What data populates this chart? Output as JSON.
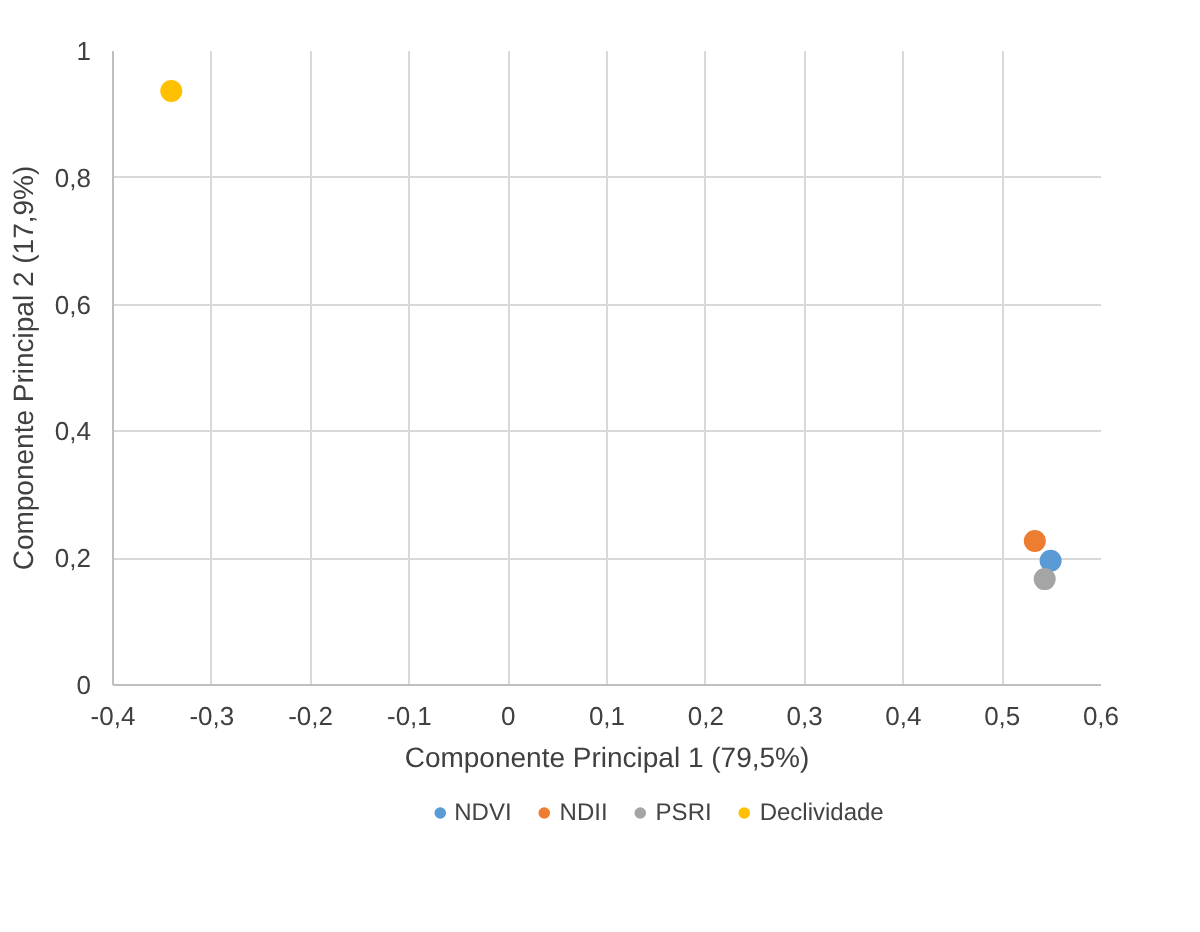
{
  "chart_data": {
    "type": "scatter",
    "xlabel": "Componente Principal 1 (79,5%)",
    "ylabel": "Componente Principal 2 (17,9%)",
    "series": [
      {
        "name": "NDVI",
        "color": "#5b9bd5",
        "x": [
          0.549
        ],
        "values": [
          0.196
        ]
      },
      {
        "name": "NDII",
        "color": "#ed7d31",
        "x": [
          0.533
        ],
        "values": [
          0.227
        ]
      },
      {
        "name": "PSRI",
        "color": "#a5a5a5",
        "x": [
          0.543
        ],
        "values": [
          0.167
        ]
      },
      {
        "name": "Declividade",
        "color": "#ffc000",
        "x": [
          -0.341
        ],
        "values": [
          0.937
        ]
      }
    ],
    "xlim": [
      -0.4,
      0.6
    ],
    "xticks": [
      {
        "value": -0.4,
        "label": "-0,4"
      },
      {
        "value": -0.3,
        "label": "-0,3"
      },
      {
        "value": -0.2,
        "label": "-0,2"
      },
      {
        "value": -0.1,
        "label": "-0,1"
      },
      0,
      {
        "value": 0.1,
        "label": "0,1"
      },
      {
        "value": 0.2,
        "label": "0,2"
      },
      {
        "value": 0.3,
        "label": "0,3"
      },
      {
        "value": 0.4,
        "label": "0,4"
      },
      {
        "value": 0.5,
        "label": "0,5"
      },
      {
        "value": 0.6,
        "label": "0,6"
      }
    ],
    "ylim": [
      0,
      1
    ],
    "yticks": [
      0,
      {
        "value": 0.2,
        "label": "0,2"
      },
      {
        "value": 0.4,
        "label": "0,4"
      },
      {
        "value": 0.6,
        "label": "0,6"
      },
      {
        "value": 0.8,
        "label": "0,8"
      },
      1
    ],
    "grid": true,
    "legend": "bottom",
    "marker": "circle"
  }
}
